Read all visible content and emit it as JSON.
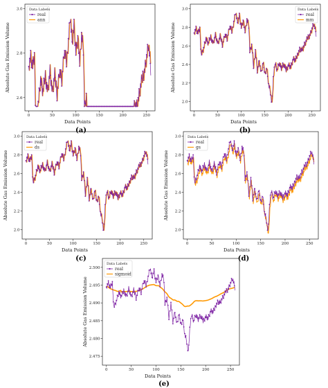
{
  "chart_data": [
    {
      "type": "line",
      "panel_label": "(a)",
      "xlabel": "Data Points",
      "ylabel": "Absolute Gas Emission Volume",
      "xlim": [
        -8,
        268
      ],
      "ylim": [
        2.54,
        3.02
      ],
      "xticks": [
        0,
        50,
        100,
        150,
        200,
        250
      ],
      "yticks": [
        2.6,
        2.8,
        3.0
      ],
      "legend": {
        "title": "Data Labels",
        "placement": "upper-left",
        "entries": [
          "real",
          "ann"
        ]
      },
      "series": [
        {
          "name": "real",
          "color": "#7b1fa2",
          "style": "line-dot"
        },
        {
          "name": "ann",
          "color": "#ff9800",
          "style": "line",
          "model": "ann",
          "offset": 0.0
        }
      ]
    },
    {
      "type": "line",
      "panel_label": "(b)",
      "xlabel": "Data Points",
      "ylabel": "Absolute Gas Emission Volume",
      "xlim": [
        -8,
        268
      ],
      "ylim": [
        1.9,
        3.05
      ],
      "xticks": [
        0,
        50,
        100,
        150,
        200,
        250
      ],
      "yticks": [
        2.0,
        2.2,
        2.4,
        2.6,
        2.8,
        3.0
      ],
      "legend": {
        "title": "Data Labels",
        "placement": "upper-right",
        "entries": [
          "real",
          "mm"
        ]
      },
      "series": [
        {
          "name": "real",
          "color": "#7b1fa2",
          "style": "line-dot"
        },
        {
          "name": "mm",
          "color": "#ff9800",
          "style": "line",
          "model": "mm",
          "offset": 0.0
        }
      ]
    },
    {
      "type": "line",
      "panel_label": "(c)",
      "xlabel": "Data Points",
      "ylabel": "Absolute Gas Emission Volume",
      "xlim": [
        -8,
        268
      ],
      "ylim": [
        1.9,
        3.05
      ],
      "xticks": [
        0,
        50,
        100,
        150,
        200,
        250
      ],
      "yticks": [
        2.0,
        2.2,
        2.4,
        2.6,
        2.8,
        3.0
      ],
      "legend": {
        "title": "Data Labels",
        "placement": "upper-left",
        "entries": [
          "real",
          "ds"
        ]
      },
      "series": [
        {
          "name": "real",
          "color": "#7b1fa2",
          "style": "line-dot"
        },
        {
          "name": "ds",
          "color": "#ff9800",
          "style": "line",
          "model": "ds",
          "offset": 0.0
        }
      ]
    },
    {
      "type": "line",
      "panel_label": "(d)",
      "xlabel": "Data Points",
      "ylabel": "Absolute Gas Emission Volume",
      "xlim": [
        -8,
        268
      ],
      "ylim": [
        1.9,
        3.05
      ],
      "xticks": [
        0,
        50,
        100,
        150,
        200,
        250
      ],
      "yticks": [
        2.0,
        2.2,
        2.4,
        2.6,
        2.8,
        3.0
      ],
      "legend": {
        "title": "Data Labels",
        "placement": "upper-left",
        "entries": [
          "real",
          "gs"
        ]
      },
      "series": [
        {
          "name": "real",
          "color": "#7b1fa2",
          "style": "line-dot"
        },
        {
          "name": "gs",
          "color": "#ff9800",
          "style": "line",
          "model": "gs",
          "offset": -0.03
        }
      ]
    },
    {
      "type": "line",
      "panel_label": "(e)",
      "xlabel": "Data Points",
      "ylabel": "Absolute Gas Emission Volume",
      "xlim": [
        -8,
        268
      ],
      "ylim": [
        2.4725,
        2.5025
      ],
      "xticks": [
        0,
        50,
        100,
        150,
        200,
        250
      ],
      "yticks": [
        2.475,
        2.48,
        2.485,
        2.49,
        2.495,
        2.5
      ],
      "ytick_labels": [
        "2.475",
        "2.480",
        "2.485",
        "2.490",
        "2.495",
        "2.500"
      ],
      "legend": {
        "title": "Data Labels",
        "placement": "upper-left",
        "entries": [
          "real",
          "sigmoid"
        ]
      },
      "series": [
        {
          "name": "real",
          "color": "#7b1fa2",
          "style": "line-dot"
        },
        {
          "name": "sigmoid",
          "color": "#ff9800",
          "style": "line-thick",
          "model": "sigmoid"
        }
      ]
    }
  ]
}
